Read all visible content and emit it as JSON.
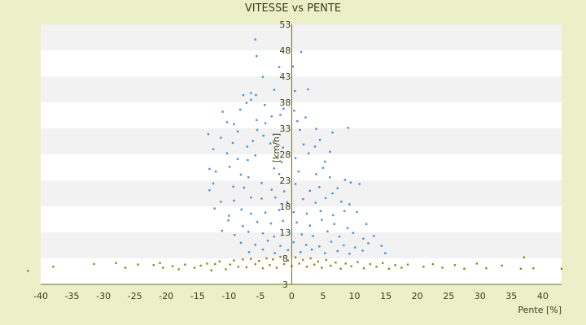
{
  "chart_data": {
    "type": "scatter",
    "title": "VITESSE vs PENTE",
    "xlabel": "Pente [%]",
    "ylabel": "[km/h]",
    "xlim": [
      -40,
      43
    ],
    "ylim": [
      3,
      53
    ],
    "x_ticks": [
      "-40",
      "-35",
      "-30",
      "-25",
      "-20",
      "-15",
      "-10",
      "-5",
      "0",
      "5",
      "10",
      "15",
      "20",
      "25",
      "30",
      "35",
      "40"
    ],
    "y_ticks": [
      "3",
      "8",
      "13",
      "18",
      "23",
      "28",
      "33",
      "38",
      "43",
      "48",
      "53"
    ],
    "grid": "horizontal bands",
    "colors": {
      "background": "#ecf0c8",
      "band_light": "#ffffff",
      "band_dark": "#f2f2f2",
      "series_blue": "#4a90d9",
      "series_olive": "#8a8a20",
      "axis": "#6b6b2b"
    },
    "series": [
      {
        "color": "#4a90d9",
        "points": [
          [
            -5.8,
            50.1
          ],
          [
            -5.6,
            46.9
          ],
          [
            1.5,
            47.7
          ],
          [
            0.2,
            44.9
          ],
          [
            -2.0,
            44.8
          ],
          [
            -4.6,
            42.9
          ],
          [
            -2.8,
            40.4
          ],
          [
            2.6,
            40.5
          ],
          [
            0.5,
            40.2
          ],
          [
            -7.7,
            39.4
          ],
          [
            -6.5,
            39.8
          ],
          [
            -5.7,
            39.4
          ],
          [
            -6.5,
            38.5
          ],
          [
            -7.2,
            37.9
          ],
          [
            -4.3,
            37.5
          ],
          [
            -1.3,
            36.8
          ],
          [
            0.4,
            36.4
          ],
          [
            -8.2,
            36.6
          ],
          [
            -11.0,
            36.2
          ],
          [
            -10.3,
            34.2
          ],
          [
            -9.2,
            33.8
          ],
          [
            -5.6,
            34.6
          ],
          [
            -4.2,
            34.0
          ],
          [
            -3.2,
            35.3
          ],
          [
            -1.8,
            35.6
          ],
          [
            0.9,
            34.4
          ],
          [
            2.2,
            35.1
          ],
          [
            -13.3,
            31.9
          ],
          [
            -11.3,
            31.2
          ],
          [
            -8.6,
            32.4
          ],
          [
            -5.5,
            32.7
          ],
          [
            -4.5,
            31.6
          ],
          [
            1.3,
            32.7
          ],
          [
            3.9,
            32.9
          ],
          [
            6.5,
            32.2
          ],
          [
            9.0,
            33.1
          ],
          [
            -12.5,
            29.0
          ],
          [
            -9.4,
            30.2
          ],
          [
            -7.1,
            29.5
          ],
          [
            -6.2,
            30.6
          ],
          [
            -3.4,
            30.1
          ],
          [
            -1.4,
            29.3
          ],
          [
            1.9,
            29.9
          ],
          [
            3.7,
            29.5
          ],
          [
            4.5,
            30.8
          ],
          [
            -10.3,
            28.2
          ],
          [
            -8.6,
            27.1
          ],
          [
            -7.0,
            26.9
          ],
          [
            -5.8,
            27.8
          ],
          [
            -1.6,
            26.5
          ],
          [
            0.6,
            27.3
          ],
          [
            2.7,
            28.2
          ],
          [
            5.3,
            26.6
          ],
          [
            6.1,
            28.5
          ],
          [
            -13.1,
            25.2
          ],
          [
            -12.1,
            24.7
          ],
          [
            -9.9,
            25.6
          ],
          [
            -8.1,
            24.1
          ],
          [
            -6.9,
            23.6
          ],
          [
            -2.8,
            25.3
          ],
          [
            -2.0,
            24.2
          ],
          [
            1.1,
            24.7
          ],
          [
            3.9,
            24.2
          ],
          [
            5.0,
            25.4
          ],
          [
            6.1,
            23.6
          ],
          [
            8.5,
            23.1
          ],
          [
            9.4,
            22.6
          ],
          [
            -13.1,
            21.1
          ],
          [
            -12.5,
            22.4
          ],
          [
            -9.3,
            21.8
          ],
          [
            -7.6,
            21.6
          ],
          [
            -4.8,
            22.5
          ],
          [
            -3.2,
            21.2
          ],
          [
            -1.2,
            20.9
          ],
          [
            0.6,
            22.3
          ],
          [
            2.9,
            21.0
          ],
          [
            4.4,
            21.7
          ],
          [
            6.5,
            20.5
          ],
          [
            7.3,
            21.5
          ],
          [
            10.8,
            22.3
          ],
          [
            -11.3,
            18.9
          ],
          [
            -9.2,
            19.1
          ],
          [
            -6.5,
            19.7
          ],
          [
            -4.8,
            19.5
          ],
          [
            -2.6,
            19.7
          ],
          [
            -0.7,
            18.8
          ],
          [
            1.8,
            19.4
          ],
          [
            3.8,
            18.7
          ],
          [
            5.4,
            19.6
          ],
          [
            7.9,
            18.9
          ],
          [
            9.2,
            18.4
          ],
          [
            -12.3,
            17.6
          ],
          [
            -10.0,
            16.2
          ],
          [
            -8.0,
            17.4
          ],
          [
            -6.5,
            16.6
          ],
          [
            -4.2,
            16.8
          ],
          [
            -2.0,
            17.3
          ],
          [
            0.3,
            16.9
          ],
          [
            2.4,
            16.6
          ],
          [
            4.6,
            17.1
          ],
          [
            6.6,
            16.3
          ],
          [
            8.4,
            17.1
          ],
          [
            10.4,
            16.9
          ],
          [
            -10.1,
            15.3
          ],
          [
            -7.8,
            14.2
          ],
          [
            -5.5,
            15.0
          ],
          [
            -3.3,
            14.7
          ],
          [
            -1.4,
            15.2
          ],
          [
            0.8,
            14.9
          ],
          [
            2.9,
            14.3
          ],
          [
            4.8,
            15.4
          ],
          [
            6.8,
            14.6
          ],
          [
            8.9,
            13.8
          ],
          [
            11.9,
            14.6
          ],
          [
            -11.1,
            13.3
          ],
          [
            -9.1,
            12.5
          ],
          [
            -6.9,
            13.1
          ],
          [
            -4.6,
            12.8
          ],
          [
            -2.8,
            12.2
          ],
          [
            -0.4,
            13.0
          ],
          [
            1.6,
            12.6
          ],
          [
            3.4,
            12.3
          ],
          [
            5.7,
            13.2
          ],
          [
            7.6,
            12.2
          ],
          [
            9.8,
            12.9
          ],
          [
            11.4,
            11.8
          ],
          [
            13.1,
            12.3
          ],
          [
            -8.1,
            11.0
          ],
          [
            -5.8,
            10.6
          ],
          [
            -3.8,
            11.4
          ],
          [
            -1.8,
            10.4
          ],
          [
            0.3,
            11.1
          ],
          [
            2.3,
            10.6
          ],
          [
            4.4,
            10.3
          ],
          [
            6.3,
            11.2
          ],
          [
            8.3,
            10.5
          ],
          [
            10.1,
            10.1
          ],
          [
            12.2,
            10.9
          ],
          [
            14.3,
            10.4
          ],
          [
            -6.8,
            9.2
          ],
          [
            -4.6,
            9.7
          ],
          [
            -2.7,
            9.0
          ],
          [
            -0.6,
            9.6
          ],
          [
            1.4,
            9.2
          ],
          [
            3.2,
            9.7
          ],
          [
            5.3,
            9.0
          ],
          [
            7.3,
            9.4
          ],
          [
            9.2,
            8.9
          ],
          [
            11.3,
            9.5
          ],
          [
            14.9,
            9.0
          ]
        ]
      },
      {
        "color": "#8a8a20",
        "points": [
          [
            -42.0,
            5.6
          ],
          [
            -38.0,
            6.4
          ],
          [
            -31.5,
            6.9
          ],
          [
            -28.0,
            7.1
          ],
          [
            -26.5,
            6.2
          ],
          [
            -24.5,
            6.8
          ],
          [
            -22.0,
            6.7
          ],
          [
            -21.0,
            7.1
          ],
          [
            -20.5,
            6.2
          ],
          [
            -19.0,
            6.5
          ],
          [
            -18.0,
            5.9
          ],
          [
            -17.0,
            6.8
          ],
          [
            -15.5,
            6.2
          ],
          [
            -14.5,
            6.6
          ],
          [
            -13.5,
            7.0
          ],
          [
            -12.8,
            5.7
          ],
          [
            -12.2,
            6.9
          ],
          [
            -11.5,
            7.4
          ],
          [
            -10.5,
            5.9
          ],
          [
            -9.8,
            6.8
          ],
          [
            -9.2,
            7.6
          ],
          [
            -8.5,
            6.4
          ],
          [
            -7.8,
            7.8
          ],
          [
            -7.2,
            6.3
          ],
          [
            -6.5,
            7.9
          ],
          [
            -5.8,
            6.9
          ],
          [
            -5.2,
            7.5
          ],
          [
            -4.6,
            6.1
          ],
          [
            -4.0,
            8.0
          ],
          [
            -3.5,
            6.7
          ],
          [
            -3.0,
            7.8
          ],
          [
            -2.4,
            6.2
          ],
          [
            -1.8,
            8.3
          ],
          [
            -1.2,
            6.9
          ],
          [
            -0.6,
            7.6
          ],
          [
            0.0,
            6.5
          ],
          [
            0.6,
            8.2
          ],
          [
            1.2,
            7.0
          ],
          [
            1.8,
            7.7
          ],
          [
            2.4,
            6.4
          ],
          [
            3.0,
            8.0
          ],
          [
            3.6,
            6.8
          ],
          [
            4.2,
            7.4
          ],
          [
            4.8,
            6.2
          ],
          [
            5.5,
            7.7
          ],
          [
            6.2,
            6.6
          ],
          [
            7.0,
            7.2
          ],
          [
            7.8,
            6.0
          ],
          [
            8.6,
            7.0
          ],
          [
            9.5,
            6.5
          ],
          [
            10.5,
            7.3
          ],
          [
            11.5,
            6.1
          ],
          [
            12.5,
            6.9
          ],
          [
            13.5,
            6.4
          ],
          [
            14.5,
            7.1
          ],
          [
            15.5,
            6.0
          ],
          [
            16.5,
            6.7
          ],
          [
            17.5,
            6.2
          ],
          [
            18.5,
            6.8
          ],
          [
            21.0,
            6.4
          ],
          [
            22.5,
            6.9
          ],
          [
            24.0,
            6.2
          ],
          [
            26.0,
            6.7
          ],
          [
            27.5,
            6.0
          ],
          [
            29.5,
            7.0
          ],
          [
            31.0,
            6.1
          ],
          [
            33.5,
            6.6
          ],
          [
            36.5,
            6.0
          ],
          [
            37.0,
            8.2
          ],
          [
            38.5,
            6.1
          ],
          [
            43.0,
            6.0
          ]
        ]
      }
    ]
  }
}
